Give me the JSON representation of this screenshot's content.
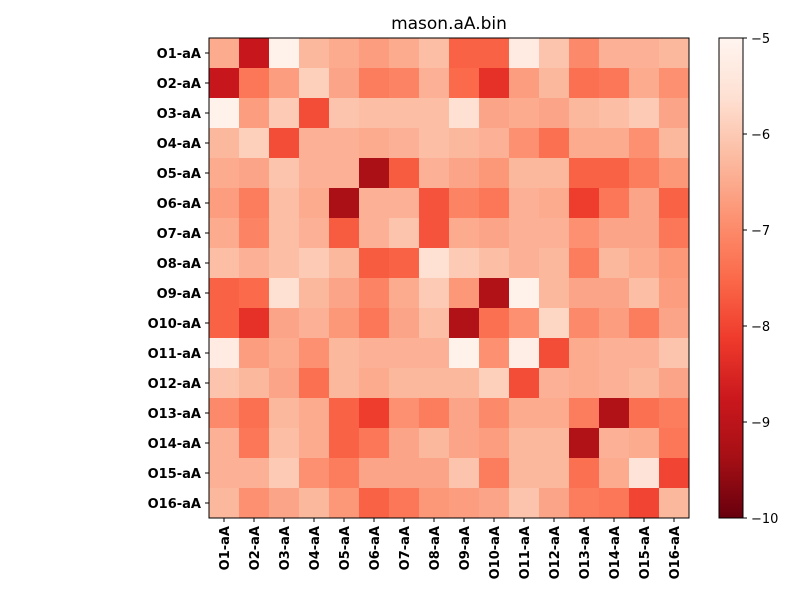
{
  "chart_data": {
    "type": "heatmap",
    "title": "mason.aA.bin",
    "xlabel": "",
    "ylabel": "",
    "rows": [
      "O1-aA",
      "O2-aA",
      "O3-aA",
      "O4-aA",
      "O5-aA",
      "O6-aA",
      "O7-aA",
      "O8-aA",
      "O9-aA",
      "O10-aA",
      "O11-aA",
      "O12-aA",
      "O13-aA",
      "O14-aA",
      "O15-aA",
      "O16-aA"
    ],
    "cols": [
      "O1-aA",
      "O2-aA",
      "O3-aA",
      "O4-aA",
      "O5-aA",
      "O6-aA",
      "O7-aA",
      "O8-aA",
      "O9-aA",
      "O10-aA",
      "O11-aA",
      "O12-aA",
      "O13-aA",
      "O14-aA",
      "O15-aA",
      "O16-aA"
    ],
    "values": [
      [
        -6.5,
        -8.8,
        -5.1,
        -6.3,
        -6.5,
        -6.7,
        -6.5,
        -6.2,
        -7.6,
        -7.6,
        -5.3,
        -6.1,
        -7.0,
        -6.4,
        -6.4,
        -6.3
      ],
      [
        -8.8,
        -7.3,
        -6.7,
        -5.9,
        -6.6,
        -7.2,
        -7.1,
        -6.4,
        -7.5,
        -8.3,
        -6.7,
        -6.3,
        -7.4,
        -7.3,
        -6.5,
        -6.9
      ],
      [
        -5.1,
        -6.7,
        -6.0,
        -7.9,
        -6.1,
        -6.2,
        -6.2,
        -6.2,
        -5.6,
        -6.6,
        -6.5,
        -6.6,
        -6.3,
        -6.2,
        -6.0,
        -6.6
      ],
      [
        -6.3,
        -5.9,
        -7.9,
        -6.4,
        -6.4,
        -6.5,
        -6.4,
        -6.2,
        -6.3,
        -6.4,
        -6.9,
        -7.4,
        -6.5,
        -6.5,
        -6.9,
        -6.3
      ],
      [
        -6.5,
        -6.6,
        -6.1,
        -6.4,
        -6.4,
        -9.3,
        -7.7,
        -6.4,
        -6.6,
        -6.8,
        -6.3,
        -6.3,
        -7.6,
        -7.6,
        -7.2,
        -6.8
      ],
      [
        -6.7,
        -7.2,
        -6.2,
        -6.5,
        -9.3,
        -6.4,
        -6.4,
        -7.8,
        -7.1,
        -7.3,
        -6.4,
        -6.5,
        -8.1,
        -7.3,
        -6.6,
        -7.6
      ],
      [
        -6.5,
        -7.1,
        -6.2,
        -6.4,
        -7.7,
        -6.4,
        -6.1,
        -7.8,
        -6.5,
        -6.6,
        -6.4,
        -6.4,
        -6.9,
        -6.6,
        -6.6,
        -7.3
      ],
      [
        -6.2,
        -6.4,
        -6.2,
        -6.0,
        -6.3,
        -7.7,
        -7.6,
        -5.6,
        -6.0,
        -6.2,
        -6.4,
        -6.3,
        -7.2,
        -6.3,
        -6.5,
        -6.8
      ],
      [
        -7.6,
        -7.5,
        -5.6,
        -6.3,
        -6.6,
        -7.1,
        -6.5,
        -6.0,
        -6.8,
        -9.2,
        -5.1,
        -6.3,
        -6.6,
        -6.6,
        -6.2,
        -6.7
      ],
      [
        -7.6,
        -8.3,
        -6.6,
        -6.4,
        -6.8,
        -7.3,
        -6.6,
        -6.2,
        -9.2,
        -7.4,
        -6.9,
        -5.8,
        -7.0,
        -6.7,
        -7.2,
        -6.6
      ],
      [
        -5.3,
        -6.7,
        -6.5,
        -6.9,
        -6.3,
        -6.4,
        -6.4,
        -6.4,
        -5.1,
        -6.9,
        -5.2,
        -7.9,
        -6.5,
        -6.4,
        -6.4,
        -6.1
      ],
      [
        -6.1,
        -6.3,
        -6.6,
        -7.4,
        -6.3,
        -6.5,
        -6.3,
        -6.3,
        -6.3,
        -5.9,
        -7.9,
        -6.4,
        -6.5,
        -6.4,
        -6.3,
        -6.6
      ],
      [
        -7.0,
        -7.4,
        -6.3,
        -6.5,
        -7.6,
        -8.1,
        -6.9,
        -7.2,
        -6.6,
        -7.0,
        -6.5,
        -6.5,
        -7.2,
        -9.2,
        -7.4,
        -7.2
      ],
      [
        -6.4,
        -7.3,
        -6.2,
        -6.5,
        -7.6,
        -7.3,
        -6.6,
        -6.3,
        -6.6,
        -6.7,
        -6.3,
        -6.3,
        -9.2,
        -6.4,
        -6.5,
        -7.3
      ],
      [
        -6.4,
        -6.4,
        -6.0,
        -6.9,
        -7.2,
        -6.6,
        -6.6,
        -6.6,
        -6.1,
        -7.2,
        -6.3,
        -6.3,
        -7.4,
        -6.5,
        -5.5,
        -8.0
      ],
      [
        -6.3,
        -6.9,
        -6.6,
        -6.3,
        -6.8,
        -7.6,
        -7.3,
        -6.8,
        -6.7,
        -6.6,
        -6.1,
        -6.6,
        -7.2,
        -7.3,
        -8.0,
        -6.3
      ]
    ],
    "colorbar": {
      "min": -10,
      "max": -5,
      "ticks": [
        -5,
        -6,
        -7,
        -8,
        -9,
        -10
      ],
      "colormap": "Reds_r"
    },
    "colormap_stops": [
      "#67000d",
      "#a50f15",
      "#cb181d",
      "#ef3b2c",
      "#fb6a4a",
      "#fc9272",
      "#fcbba1",
      "#fee0d2",
      "#fff5f0"
    ]
  }
}
